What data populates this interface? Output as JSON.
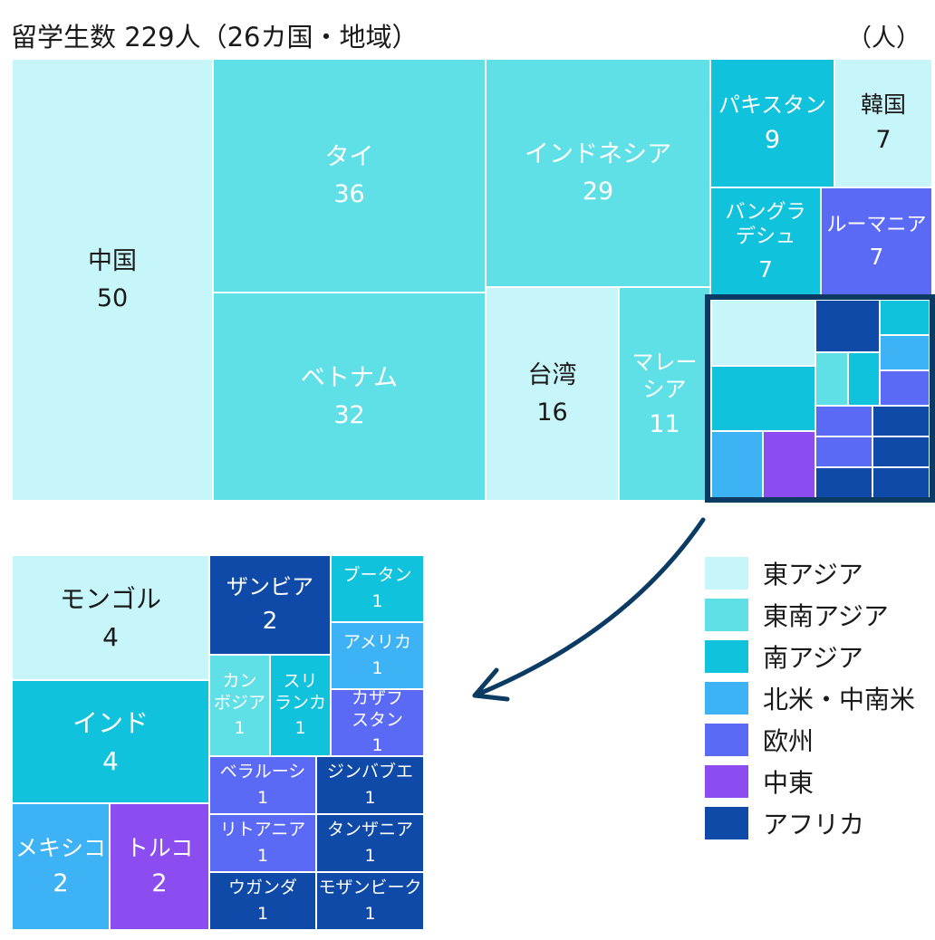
{
  "title": "留学生数 229人（26カ国・地域）",
  "unit": "（人）",
  "colors": {
    "east_asia": "#c6f6fa",
    "southeast_asia": "#5fe0e6",
    "south_asia": "#10c2dc",
    "americas": "#3db3f5",
    "europe": "#5a6af5",
    "middle_east": "#8b4cf0",
    "africa": "#0f4aa8",
    "frame": "#0b3b63"
  },
  "chart_data": {
    "type": "treemap",
    "title": "留学生数 229人（26カ国・地域）",
    "unit": "（人）",
    "total": 229,
    "legend": [
      {
        "key": "east_asia",
        "label": "東アジア"
      },
      {
        "key": "southeast_asia",
        "label": "東南アジア"
      },
      {
        "key": "south_asia",
        "label": "南アジア"
      },
      {
        "key": "americas",
        "label": "北米・中南米"
      },
      {
        "key": "europe",
        "label": "欧州"
      },
      {
        "key": "middle_east",
        "label": "中東"
      },
      {
        "key": "africa",
        "label": "アフリカ"
      }
    ],
    "items": [
      {
        "name": "中国",
        "value": 50,
        "region": "east_asia"
      },
      {
        "name": "タイ",
        "value": 36,
        "region": "southeast_asia"
      },
      {
        "name": "ベトナム",
        "value": 32,
        "region": "southeast_asia"
      },
      {
        "name": "インドネシア",
        "value": 29,
        "region": "southeast_asia"
      },
      {
        "name": "台湾",
        "value": 16,
        "region": "east_asia"
      },
      {
        "name": "マレーシア",
        "value": 11,
        "region": "southeast_asia"
      },
      {
        "name": "パキスタン",
        "value": 9,
        "region": "south_asia"
      },
      {
        "name": "韓国",
        "value": 7,
        "region": "east_asia"
      },
      {
        "name": "バングラデシュ",
        "value": 7,
        "region": "south_asia"
      },
      {
        "name": "ルーマニア",
        "value": 7,
        "region": "europe"
      },
      {
        "name": "モンゴル",
        "value": 4,
        "region": "east_asia"
      },
      {
        "name": "インド",
        "value": 4,
        "region": "south_asia"
      },
      {
        "name": "メキシコ",
        "value": 2,
        "region": "americas"
      },
      {
        "name": "トルコ",
        "value": 2,
        "region": "middle_east"
      },
      {
        "name": "ザンビア",
        "value": 2,
        "region": "africa"
      },
      {
        "name": "カンボジア",
        "value": 1,
        "region": "southeast_asia"
      },
      {
        "name": "スリランカ",
        "value": 1,
        "region": "south_asia"
      },
      {
        "name": "ブータン",
        "value": 1,
        "region": "south_asia"
      },
      {
        "name": "アメリカ",
        "value": 1,
        "region": "americas"
      },
      {
        "name": "カザフスタン",
        "value": 1,
        "region": "europe"
      },
      {
        "name": "ベラルーシ",
        "value": 1,
        "region": "europe"
      },
      {
        "name": "リトアニア",
        "value": 1,
        "region": "europe"
      },
      {
        "name": "ジンバブエ",
        "value": 1,
        "region": "africa"
      },
      {
        "name": "タンザニア",
        "value": 1,
        "region": "africa"
      },
      {
        "name": "ウガンダ",
        "value": 1,
        "region": "africa"
      },
      {
        "name": "モザンビーク",
        "value": 1,
        "region": "africa"
      }
    ]
  }
}
